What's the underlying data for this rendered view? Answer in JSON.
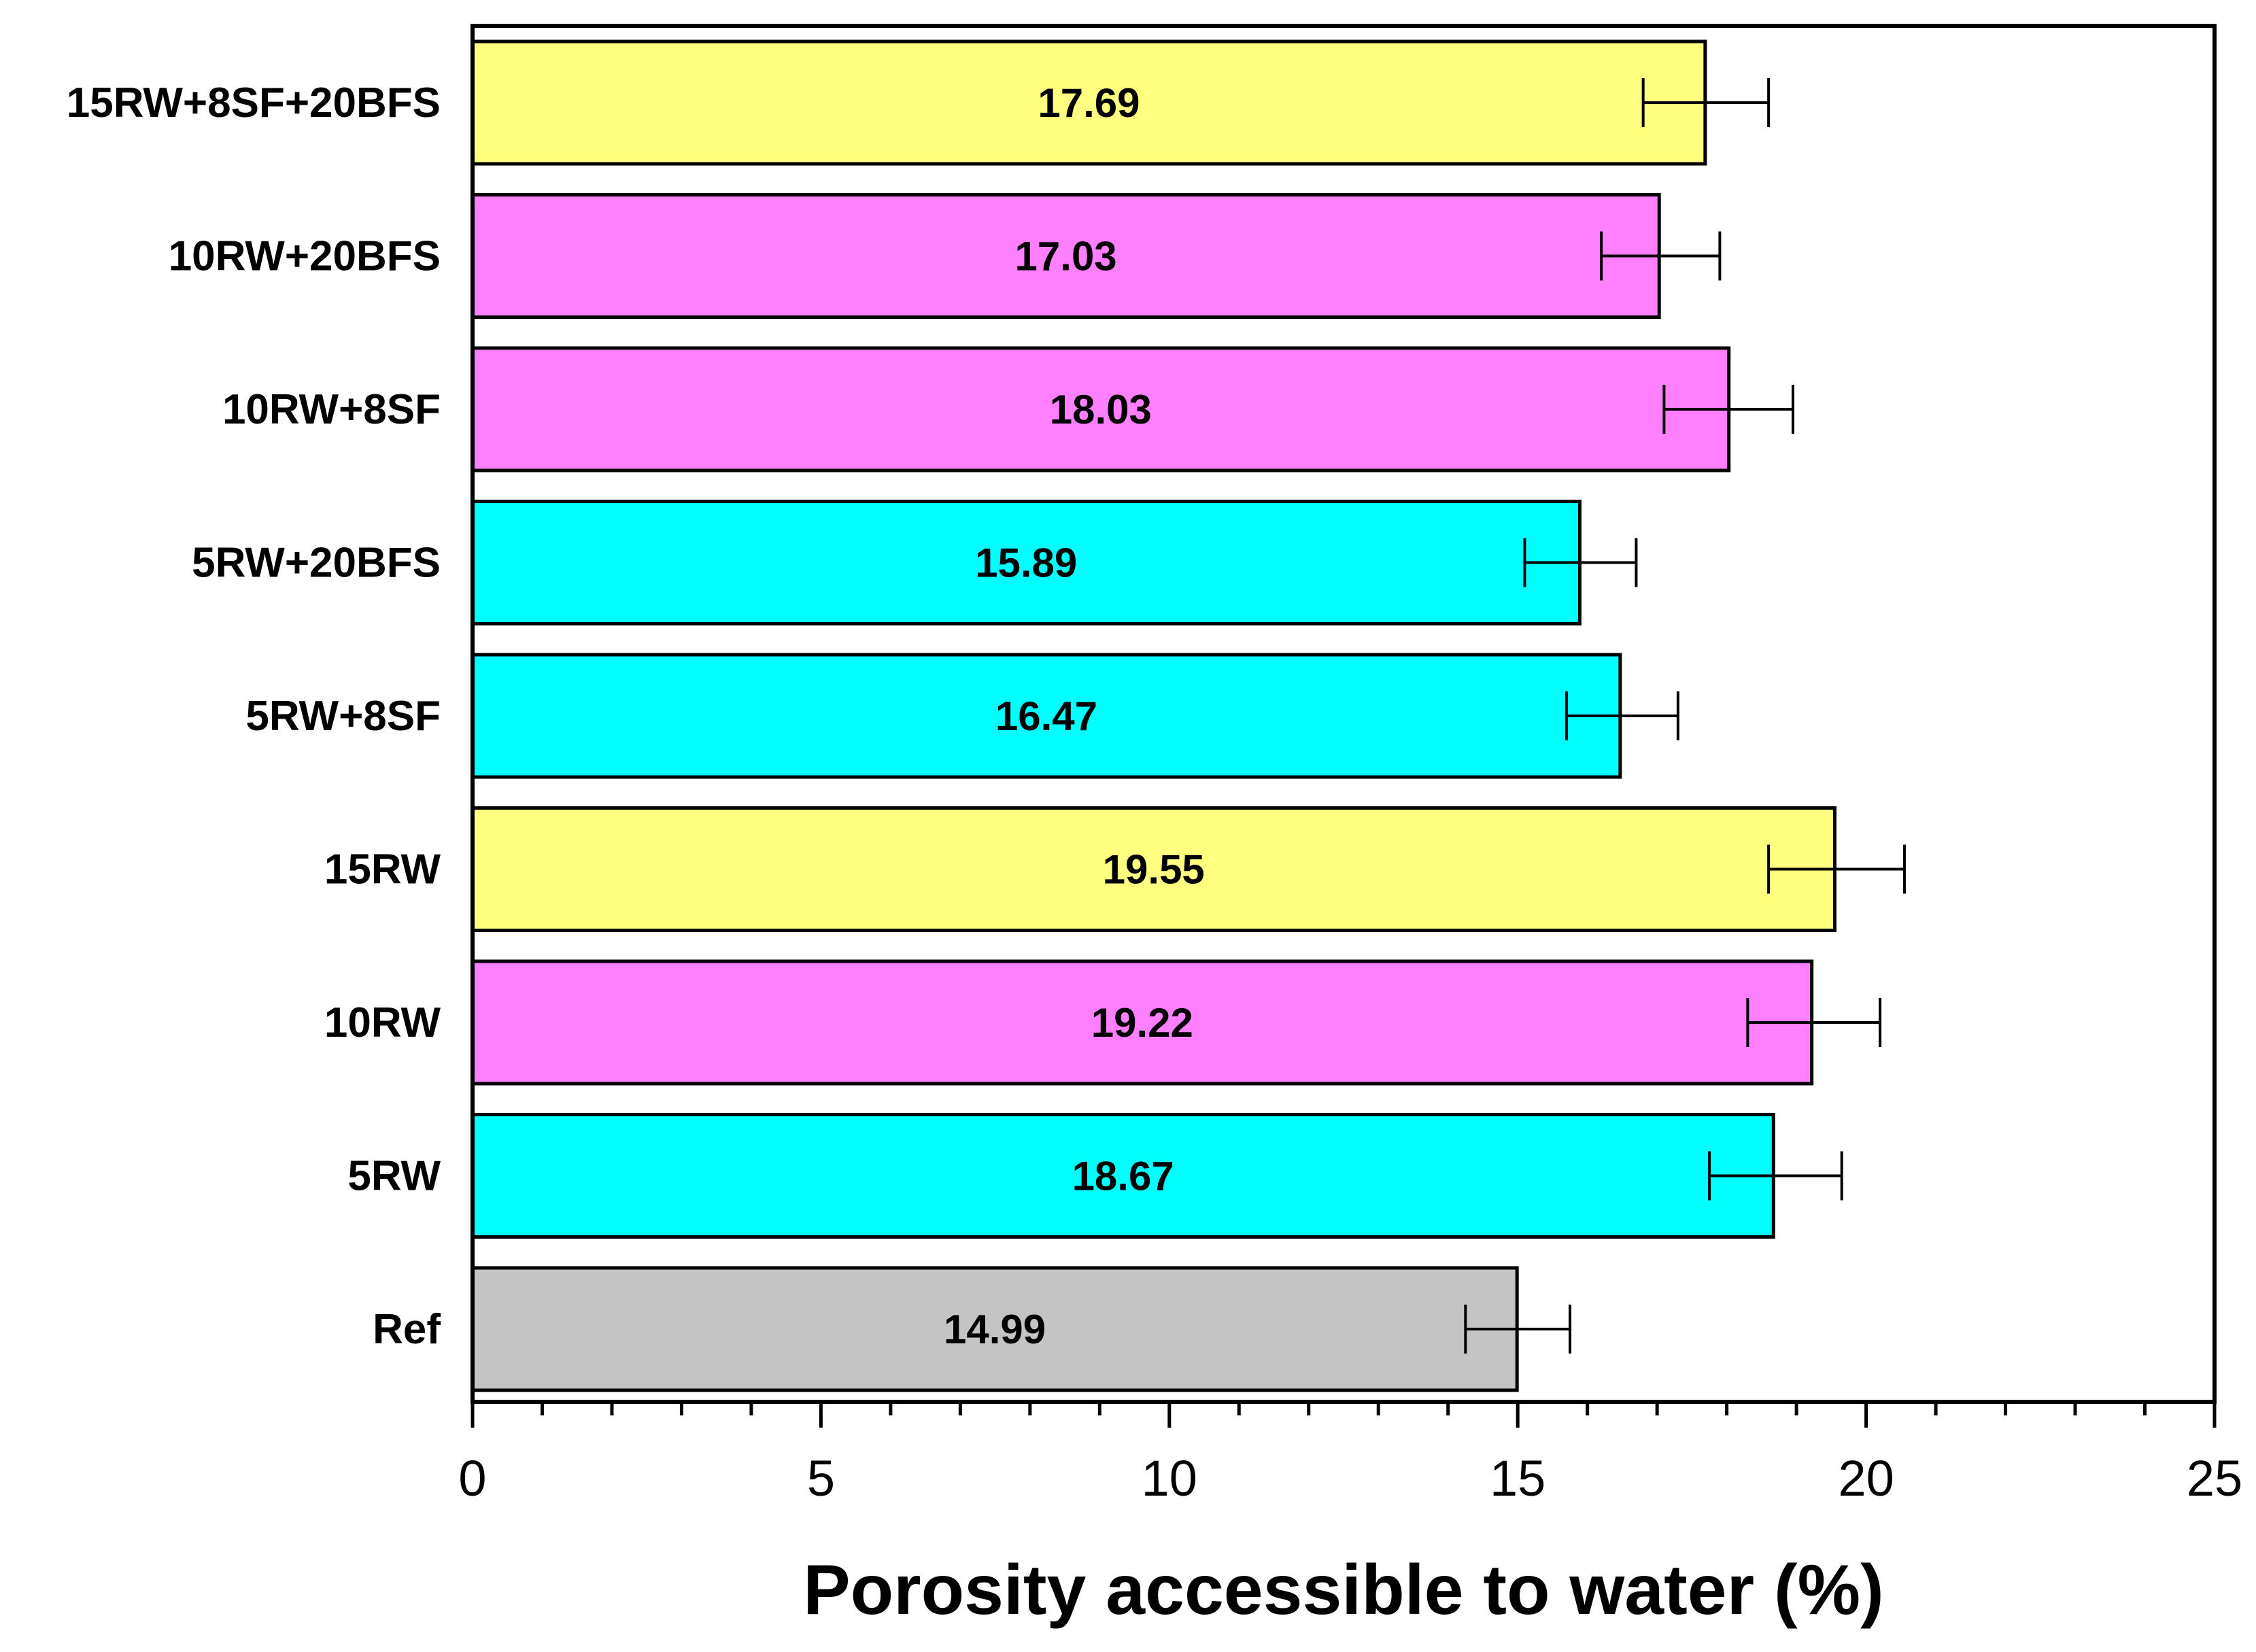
{
  "chart_data": {
    "type": "bar",
    "orientation": "horizontal",
    "title": "",
    "xlabel": "Porosity accessible to water (%)",
    "ylabel": "",
    "xlim": [
      0,
      25
    ],
    "major_ticks": [
      0,
      5,
      10,
      15,
      20,
      25
    ],
    "tick_labels": [
      "0",
      "5",
      "10",
      "15",
      "20",
      "25"
    ],
    "minor_tick_step": 1,
    "grid": false,
    "categories": [
      "15RW+8SF+20BFS",
      "10RW+20BFS",
      "10RW+8SF",
      "5RW+20BFS",
      "5RW+8SF",
      "15RW",
      "10RW",
      "5RW",
      "Ref"
    ],
    "values": [
      17.69,
      17.03,
      18.03,
      15.89,
      16.47,
      19.55,
      19.22,
      18.67,
      14.99
    ],
    "value_labels": [
      "17.69",
      "17.03",
      "18.03",
      "15.89",
      "16.47",
      "19.55",
      "19.22",
      "18.67",
      "14.99"
    ],
    "error_low": [
      16.8,
      16.2,
      17.1,
      15.1,
      15.7,
      18.6,
      18.3,
      17.75,
      14.25
    ],
    "error_high": [
      18.6,
      17.9,
      18.95,
      16.7,
      17.3,
      20.55,
      20.2,
      19.65,
      15.75
    ],
    "colors": [
      "#ffff80",
      "#ff80ff",
      "#ff80ff",
      "#00ffff",
      "#00ffff",
      "#ffff80",
      "#ff80ff",
      "#00ffff",
      "#c4c4c4"
    ]
  }
}
